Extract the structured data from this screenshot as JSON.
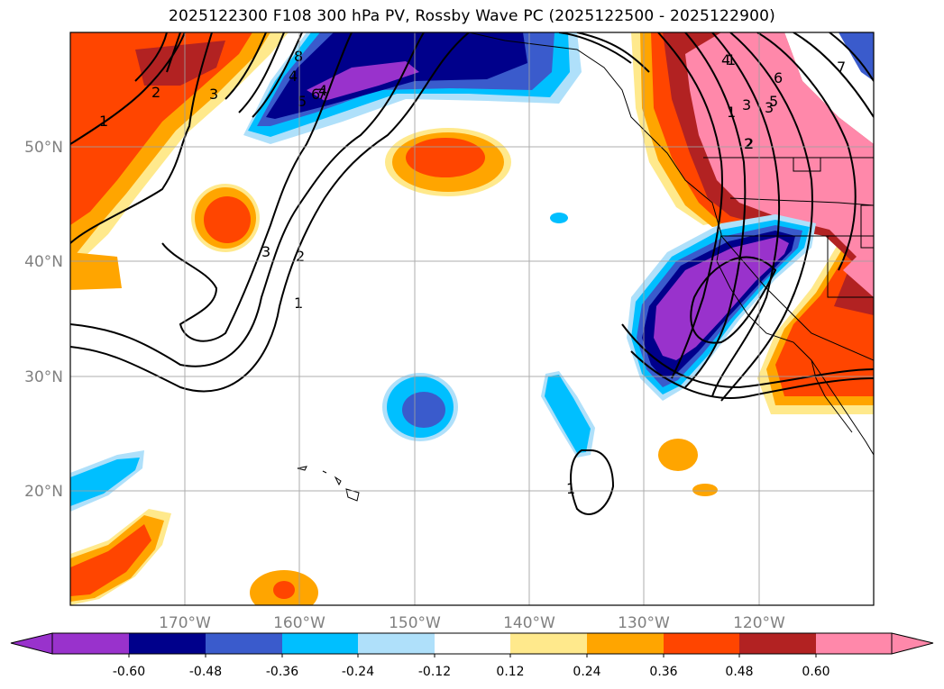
{
  "title": "2025122300 F108 300 hPa PV, Rossby Wave PC (2025122500 - 2025122900)",
  "map": {
    "lat_labels": [
      "50°N",
      "40°N",
      "30°N",
      "20°N"
    ],
    "lon_labels": [
      "170°W",
      "160°W",
      "150°W",
      "140°W",
      "130°W",
      "120°W"
    ],
    "tick_color": "#808080",
    "grid_color": "#a0a0a0",
    "contour_labels": [
      "1",
      "2",
      "3",
      "4",
      "5",
      "6",
      "7",
      "8",
      "1",
      "2",
      "3",
      "4",
      "1",
      "2",
      "3",
      "1",
      "2",
      "3",
      "4",
      "5",
      "6",
      "7",
      "1"
    ]
  },
  "colorbar": {
    "ticks": [
      "-0.60",
      "-0.48",
      "-0.36",
      "-0.24",
      "-0.12",
      "0.12",
      "0.24",
      "0.36",
      "0.48",
      "0.60"
    ],
    "colors": [
      "#9932cc",
      "#00008b",
      "#3a5bcc",
      "#00bfff",
      "#afe0fa",
      "#ffffff",
      "#ffe98c",
      "#ffa500",
      "#ff4500",
      "#b22222",
      "#ff88aa"
    ]
  }
}
